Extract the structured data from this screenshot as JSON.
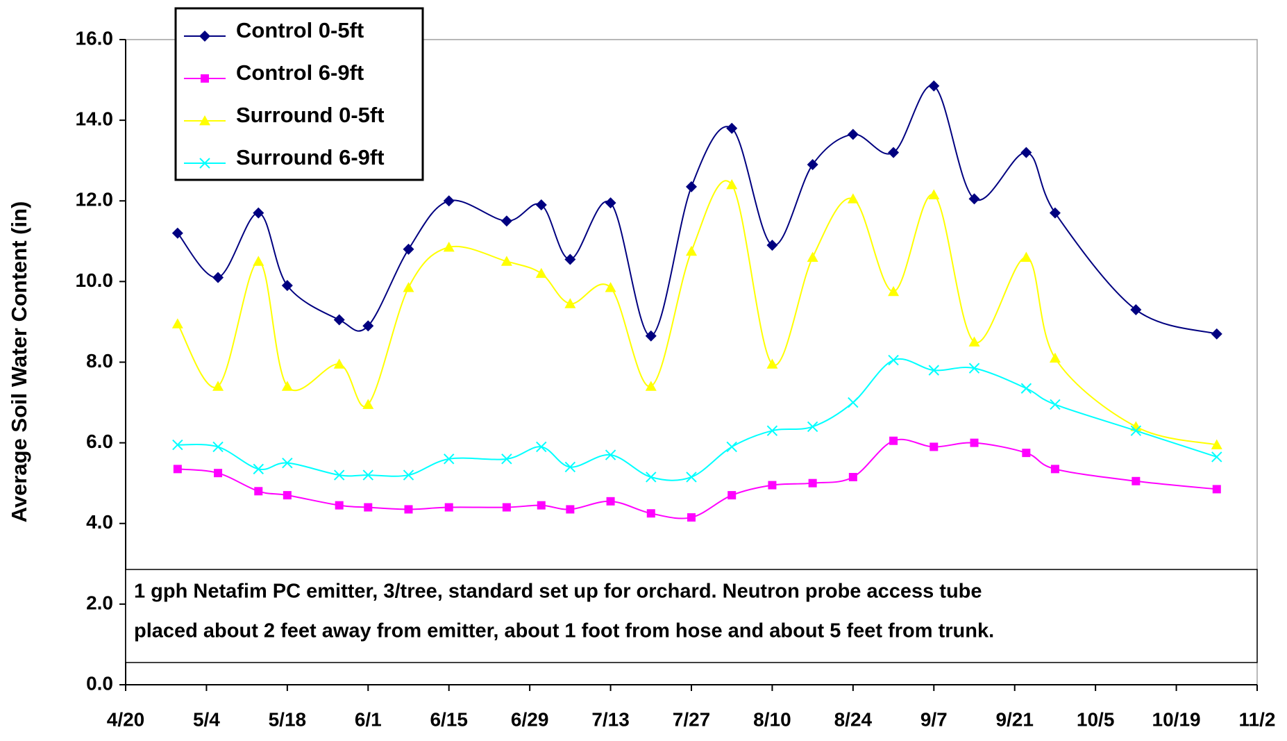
{
  "chart_data": {
    "type": "line",
    "y_label": "Average Soil Water Content (in)",
    "annotation": [
      "1 gph Netafim PC emitter, 3/tree, standard set up for orchard.  Neutron probe access tube",
      "placed about 2 feet away from emitter, about 1 foot from hose and about 5 feet from trunk."
    ],
    "x": [
      "4/29",
      "5/6",
      "5/13",
      "5/18",
      "5/27",
      "6/1",
      "6/8",
      "6/15",
      "6/25",
      "7/1",
      "7/6",
      "7/13",
      "7/20",
      "7/27",
      "8/3",
      "8/10",
      "8/17",
      "8/24",
      "8/31",
      "9/7",
      "9/14",
      "9/23",
      "9/28",
      "10/12",
      "10/26"
    ],
    "xlim": [
      "4/20",
      "11/2"
    ],
    "xticks": [
      "4/20",
      "5/4",
      "5/18",
      "6/1",
      "6/15",
      "6/29",
      "7/13",
      "7/27",
      "8/10",
      "8/24",
      "9/7",
      "9/21",
      "10/5",
      "10/19",
      "11/2"
    ],
    "ylim": [
      0,
      16
    ],
    "yticks": [
      {
        "value": 0,
        "label": "0.0"
      },
      {
        "value": 2,
        "label": "2.0"
      },
      {
        "value": 4,
        "label": "4.0"
      },
      {
        "value": 6,
        "label": "6.0"
      },
      {
        "value": 8,
        "label": "8.0"
      },
      {
        "value": 10,
        "label": "10.0"
      },
      {
        "value": 12,
        "label": "12.0"
      },
      {
        "value": 14,
        "label": "14.0"
      },
      {
        "value": 16,
        "label": "16.0"
      }
    ],
    "legend": "top-left",
    "series": [
      {
        "name": "Control 0-5ft",
        "color": "#000080",
        "marker": "diamond",
        "values": [
          11.2,
          10.1,
          11.7,
          9.9,
          9.05,
          8.9,
          10.8,
          12.0,
          11.5,
          11.9,
          10.55,
          11.95,
          8.65,
          12.35,
          13.8,
          10.9,
          12.9,
          13.65,
          13.2,
          14.85,
          12.05,
          13.2,
          11.7,
          9.3,
          8.7
        ]
      },
      {
        "name": "Control 6-9ft",
        "color": "#ff00ff",
        "marker": "square",
        "values": [
          5.35,
          5.25,
          4.8,
          4.7,
          4.45,
          4.4,
          4.35,
          4.4,
          4.4,
          4.45,
          4.35,
          4.55,
          4.25,
          4.15,
          4.7,
          4.95,
          5.0,
          5.15,
          6.05,
          5.9,
          6.0,
          5.75,
          5.35,
          5.05,
          4.85
        ]
      },
      {
        "name": "Surround 0-5ft",
        "color": "#ffff00",
        "marker": "triangle",
        "values": [
          8.95,
          7.4,
          10.5,
          7.4,
          7.95,
          6.95,
          9.85,
          10.85,
          10.5,
          10.2,
          9.45,
          9.85,
          7.4,
          10.75,
          12.4,
          7.95,
          10.6,
          12.05,
          9.75,
          12.15,
          8.5,
          10.6,
          8.1,
          6.4,
          5.95
        ]
      },
      {
        "name": "Surround 6-9ft",
        "color": "#00ffff",
        "marker": "x",
        "values": [
          5.95,
          5.9,
          5.35,
          5.5,
          5.2,
          5.2,
          5.2,
          5.6,
          5.6,
          5.9,
          5.4,
          5.7,
          5.15,
          5.15,
          5.9,
          6.3,
          6.4,
          7.0,
          8.05,
          7.8,
          7.85,
          7.35,
          6.95,
          6.3,
          5.65
        ]
      }
    ]
  }
}
